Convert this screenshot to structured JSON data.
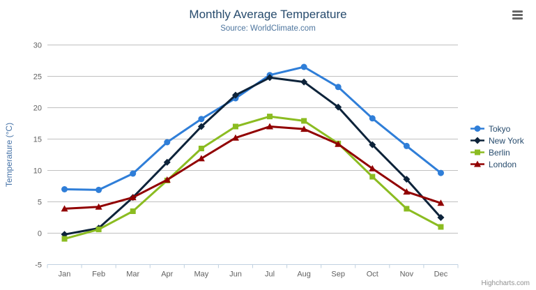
{
  "credit": "Highcharts.com",
  "export_menu_icon": "hamburger-icon",
  "chart_data": {
    "type": "line",
    "title": "Monthly Average Temperature",
    "subtitle": "Source: WorldClimate.com",
    "categories": [
      "Jan",
      "Feb",
      "Mar",
      "Apr",
      "May",
      "Jun",
      "Jul",
      "Aug",
      "Sep",
      "Oct",
      "Nov",
      "Dec"
    ],
    "xlabel": "",
    "ylabel": "Temperature (°C)",
    "ylim": [
      -5,
      30
    ],
    "ytick_interval": 5,
    "grid": true,
    "legend_position": "right",
    "colors": {
      "grid_line": "#c0c0c0",
      "axis_line": "#c0d0e0",
      "axis_label": "#606060",
      "title_text": "#274b6d",
      "subtitle_text": "#4d759e",
      "yaxis_title_text": "#4572a7",
      "legend_text": "#274b6d",
      "credit_text": "#909090"
    },
    "series": [
      {
        "name": "Tokyo",
        "color": "#2f7ed8",
        "marker": "circle",
        "values": [
          7.0,
          6.9,
          9.5,
          14.5,
          18.2,
          21.5,
          25.2,
          26.5,
          23.3,
          18.3,
          13.9,
          9.6
        ]
      },
      {
        "name": "New York",
        "color": "#0d233a",
        "marker": "diamond",
        "values": [
          -0.2,
          0.8,
          5.7,
          11.3,
          17.0,
          22.0,
          24.8,
          24.1,
          20.1,
          14.1,
          8.6,
          2.5
        ]
      },
      {
        "name": "Berlin",
        "color": "#8bbc21",
        "marker": "square",
        "values": [
          -0.9,
          0.6,
          3.5,
          8.4,
          13.5,
          17.0,
          18.6,
          17.9,
          14.3,
          9.0,
          3.9,
          1.0
        ]
      },
      {
        "name": "London",
        "color": "#910000",
        "marker": "triangle",
        "values": [
          3.9,
          4.2,
          5.7,
          8.5,
          11.9,
          15.2,
          17.0,
          16.6,
          14.2,
          10.3,
          6.6,
          4.8
        ]
      }
    ]
  }
}
